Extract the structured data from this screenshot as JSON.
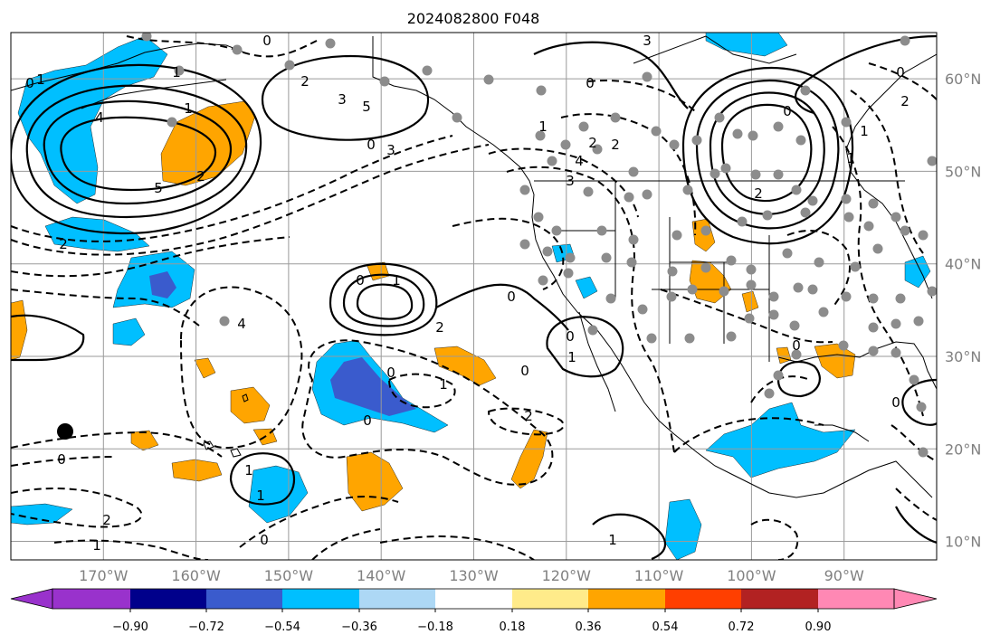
{
  "title": "2024082800 F048",
  "map": {
    "lon_range": [
      -180,
      -80
    ],
    "lat_range": [
      8,
      65
    ],
    "lon_ticks": [
      -170,
      -160,
      -150,
      -140,
      -130,
      -120,
      -110,
      -100,
      -90
    ],
    "lon_labels": [
      "170°W",
      "160°W",
      "150°W",
      "140°W",
      "130°W",
      "120°W",
      "110°W",
      "100°W",
      "90°W"
    ],
    "lat_ticks": [
      10,
      20,
      30,
      40,
      50,
      60
    ],
    "lat_labels": [
      "10°N",
      "20°N",
      "30°N",
      "40°N",
      "50°N",
      "60°N"
    ],
    "grid": true
  },
  "colorbar": {
    "ticks": [
      "−0.90",
      "−0.72",
      "−0.54",
      "−0.36",
      "−0.18",
      "0.18",
      "0.36",
      "0.54",
      "0.72",
      "0.90"
    ],
    "colors": [
      "#9932cc",
      "#00008b",
      "#3a5bcd",
      "#00bfff",
      "#add8f5",
      "#ffffff",
      "#ffeb8a",
      "#ffa500",
      "#ff3f00",
      "#b22222",
      "#ff88b4"
    ],
    "extend": "both"
  },
  "contour_labels": [
    "3",
    "0",
    "2",
    "1",
    "4",
    "5",
    "2",
    "1",
    "0",
    "3",
    "5",
    "1",
    "0",
    "2",
    "3",
    "4",
    "2",
    "2",
    "1",
    "0",
    "3",
    "2",
    "0",
    "1",
    "0",
    "2",
    "1",
    "0",
    "1",
    "0",
    "2",
    "0",
    "1",
    "0",
    "1",
    "0",
    "0",
    "2",
    "4",
    "1",
    "1",
    "0",
    "2",
    "1",
    "0",
    "1",
    "0",
    "0"
  ],
  "colors": {
    "station_dot": "#8c8c8c",
    "marker_dot": "#000000",
    "positive_fill": "#ffa500",
    "negative_fill_light": "#00bfff",
    "negative_fill_dark": "#3a5bcd"
  }
}
